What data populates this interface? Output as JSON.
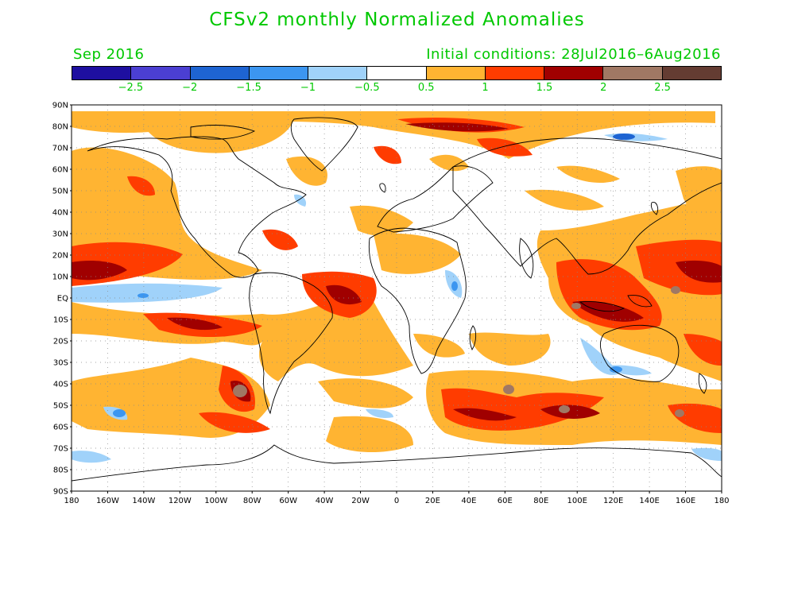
{
  "title": "CFSv2 monthly Normalized Anomalies",
  "valid_month": "Sep 2016",
  "initial_conditions": "Initial conditions: 28Jul2016–6Aug2016",
  "colorbar": {
    "colors": [
      "#1e0fa0",
      "#4b3fd2",
      "#1e64d2",
      "#3c96f0",
      "#a0d2fa",
      "#ffffff",
      "#ffb432",
      "#ff3c00",
      "#a00000",
      "#a07864",
      "#643c32"
    ],
    "labels": [
      "−2.5",
      "−2",
      "−1.5",
      "−1",
      "−0.5",
      "0.5",
      "1",
      "1.5",
      "2",
      "2.5"
    ]
  },
  "axes": {
    "lat_labels": [
      "90N",
      "80N",
      "70N",
      "60N",
      "50N",
      "40N",
      "30N",
      "20N",
      "10N",
      "EQ",
      "10S",
      "20S",
      "30S",
      "40S",
      "50S",
      "60S",
      "70S",
      "80S",
      "90S"
    ],
    "lon_labels": [
      "180",
      "160W",
      "140W",
      "120W",
      "100W",
      "80W",
      "60W",
      "40W",
      "20W",
      "0",
      "20E",
      "40E",
      "60E",
      "80E",
      "100E",
      "120E",
      "140E",
      "160E",
      "180"
    ]
  }
}
